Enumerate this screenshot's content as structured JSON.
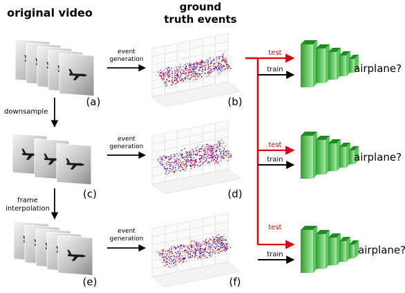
{
  "headings": {
    "original_video": "original video",
    "ground_truth_line1": "ground",
    "ground_truth_line2": "truth events"
  },
  "panel_labels": {
    "a": "(a)",
    "b": "(b)",
    "c": "(c)",
    "d": "(d)",
    "e": "(e)",
    "f": "(f)"
  },
  "arrows": {
    "downsample": "downsample",
    "frame_interpolation_line1": "frame",
    "frame_interpolation_line2": "interpolation",
    "event_generation_line1": "event",
    "event_generation_line2": "generation"
  },
  "network": {
    "test": "test",
    "train": "train",
    "output_question": "airplane?"
  },
  "colors": {
    "test_arrow": "#e00000",
    "train_arrow": "#000000",
    "network_green_dark": "#1f8c1f",
    "network_green_light": "#8fe08f",
    "events_red": "#ff0000",
    "events_blue": "#0000ff"
  }
}
